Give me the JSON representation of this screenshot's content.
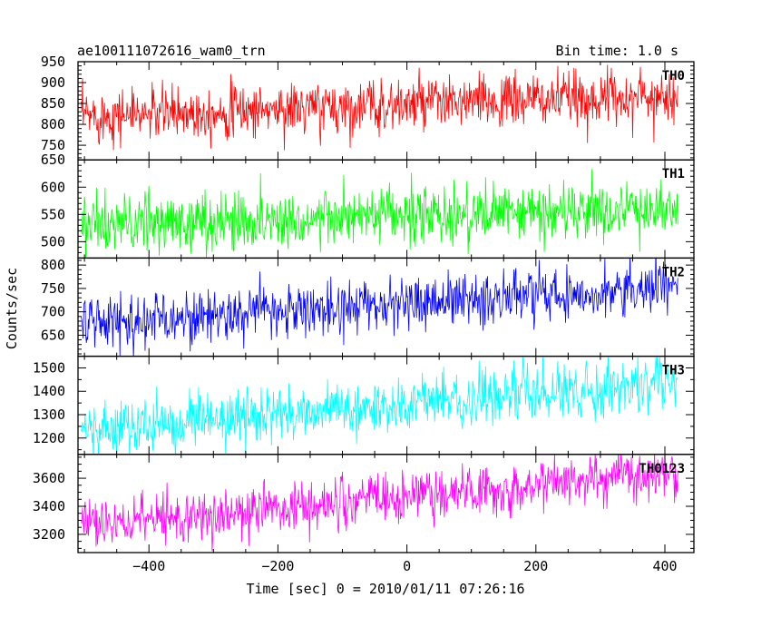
{
  "header": {
    "title": "ae100111072616_wam0_trn",
    "bin_time": "Bin time: 1.0 s"
  },
  "chart_data": {
    "type": "line",
    "xlabel": "Time [sec] 0 = 2010/01/11 07:26:16",
    "ylabel": "Counts/sec",
    "xlim": [
      -510,
      445
    ],
    "x_ticks": [
      -400,
      -200,
      0,
      200,
      400
    ],
    "x_tick_labels": [
      "−400",
      "−200",
      "0",
      "200",
      "400"
    ],
    "x_range": [
      -505,
      420
    ],
    "bin_time_s": 1.0,
    "grid": false,
    "panels": [
      {
        "label": "TH0",
        "color": "#ff0000",
        "ylim": [
          715,
          950
        ],
        "y_ticks": [
          750,
          800,
          850,
          900,
          950
        ],
        "trend": {
          "start": 820,
          "end": 870
        },
        "spread": 32
      },
      {
        "label": "TH1",
        "color": "#00ff00",
        "ylim": [
          470,
          650
        ],
        "y_ticks": [
          500,
          550,
          600,
          650
        ],
        "trend": {
          "start": 530,
          "end": 560
        },
        "spread": 27
      },
      {
        "label": "TH2",
        "color": "#0000ff",
        "ylim": [
          605,
          815
        ],
        "y_ticks": [
          650,
          700,
          750,
          800
        ],
        "trend": {
          "start": 675,
          "end": 755
        },
        "spread": 28
      },
      {
        "label": "TH3",
        "color": "#00ffff",
        "ylim": [
          1130,
          1550
        ],
        "y_ticks": [
          1200,
          1300,
          1400,
          1500
        ],
        "trend": {
          "start": 1230,
          "end": 1440
        },
        "spread": 55
      },
      {
        "label": "TH0123",
        "color": "#ff00ff",
        "ylim": [
          3070,
          3770
        ],
        "y_ticks": [
          3200,
          3400,
          3600
        ],
        "trend": {
          "start": 3255,
          "end": 3650
        },
        "spread": 90
      }
    ]
  }
}
